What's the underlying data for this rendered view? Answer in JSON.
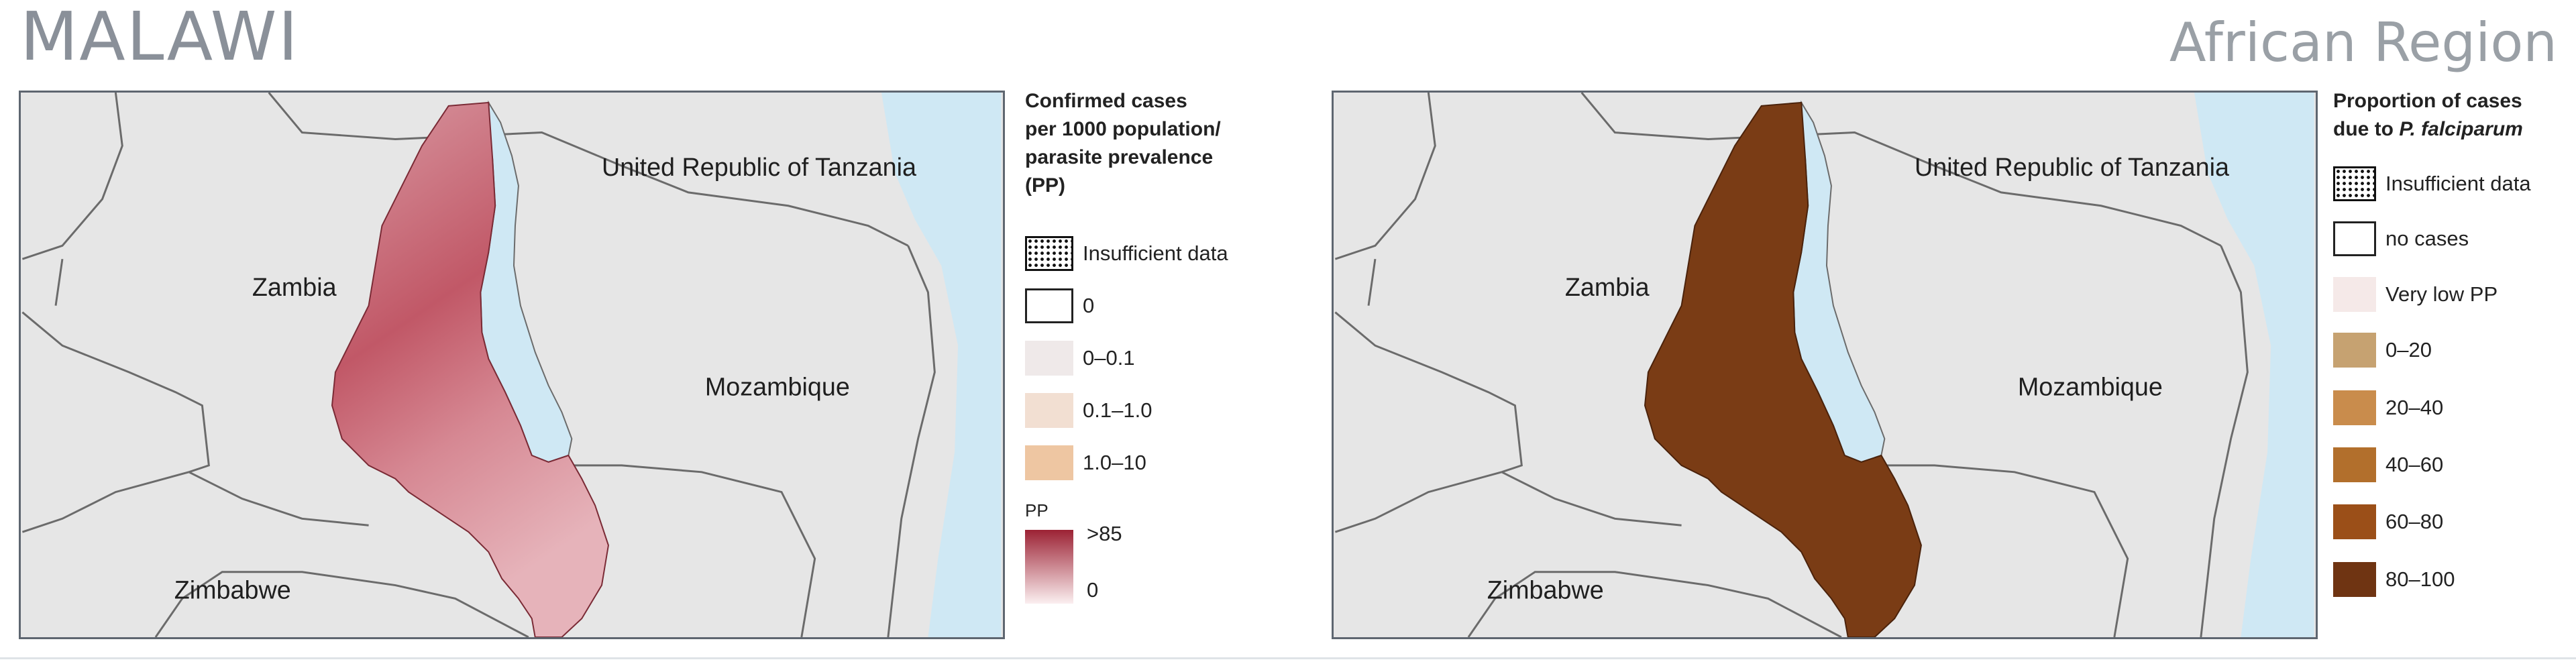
{
  "header": {
    "country": "MALAWI",
    "region": "African Region"
  },
  "map_labels": {
    "tanzania": "United Republic of Tanzania",
    "zambia": "Zambia",
    "mozambique": "Mozambique",
    "zimbabwe": "Zimbabwe"
  },
  "legend_left": {
    "title_lines": [
      "Confirmed cases",
      "per 1000 population/",
      "parasite prevalence",
      "(PP)"
    ],
    "items": [
      {
        "label": "Insufficient data",
        "type": "hatch"
      },
      {
        "label": "0",
        "color": "#ffffff"
      },
      {
        "label": "0–0.1",
        "color": "#efe9e9"
      },
      {
        "label": "0.1–1.0",
        "color": "#f2dfd2"
      },
      {
        "label": "1.0–10",
        "color": "#eec6a2"
      }
    ],
    "pp": {
      "label": "PP",
      "max_label": ">85",
      "min_label": "0",
      "color_high": "#9c2234",
      "color_low": "#fbeff0"
    }
  },
  "legend_right": {
    "title_line1": "Proportion of cases",
    "title_line2_prefix": "due to ",
    "title_line2_italic": "P. falciparum",
    "items": [
      {
        "label": "Insufficient data",
        "type": "hatch"
      },
      {
        "label": "no cases",
        "color": "#ffffff"
      },
      {
        "label": "Very low PP",
        "color": "#f5e9e8"
      },
      {
        "label": "0–20",
        "color": "#c6a271"
      },
      {
        "label": "20–40",
        "color": "#c98c4c"
      },
      {
        "label": "40–60",
        "color": "#b26f2c"
      },
      {
        "label": "60–80",
        "color": "#9b4f18"
      },
      {
        "label": "80–100",
        "color": "#6f3412"
      }
    ]
  },
  "colors": {
    "land": "#e6e6e6",
    "water": "#cfe8f4",
    "border": "#6b6b6b",
    "malawi_right_fill": "#7a3c15"
  }
}
